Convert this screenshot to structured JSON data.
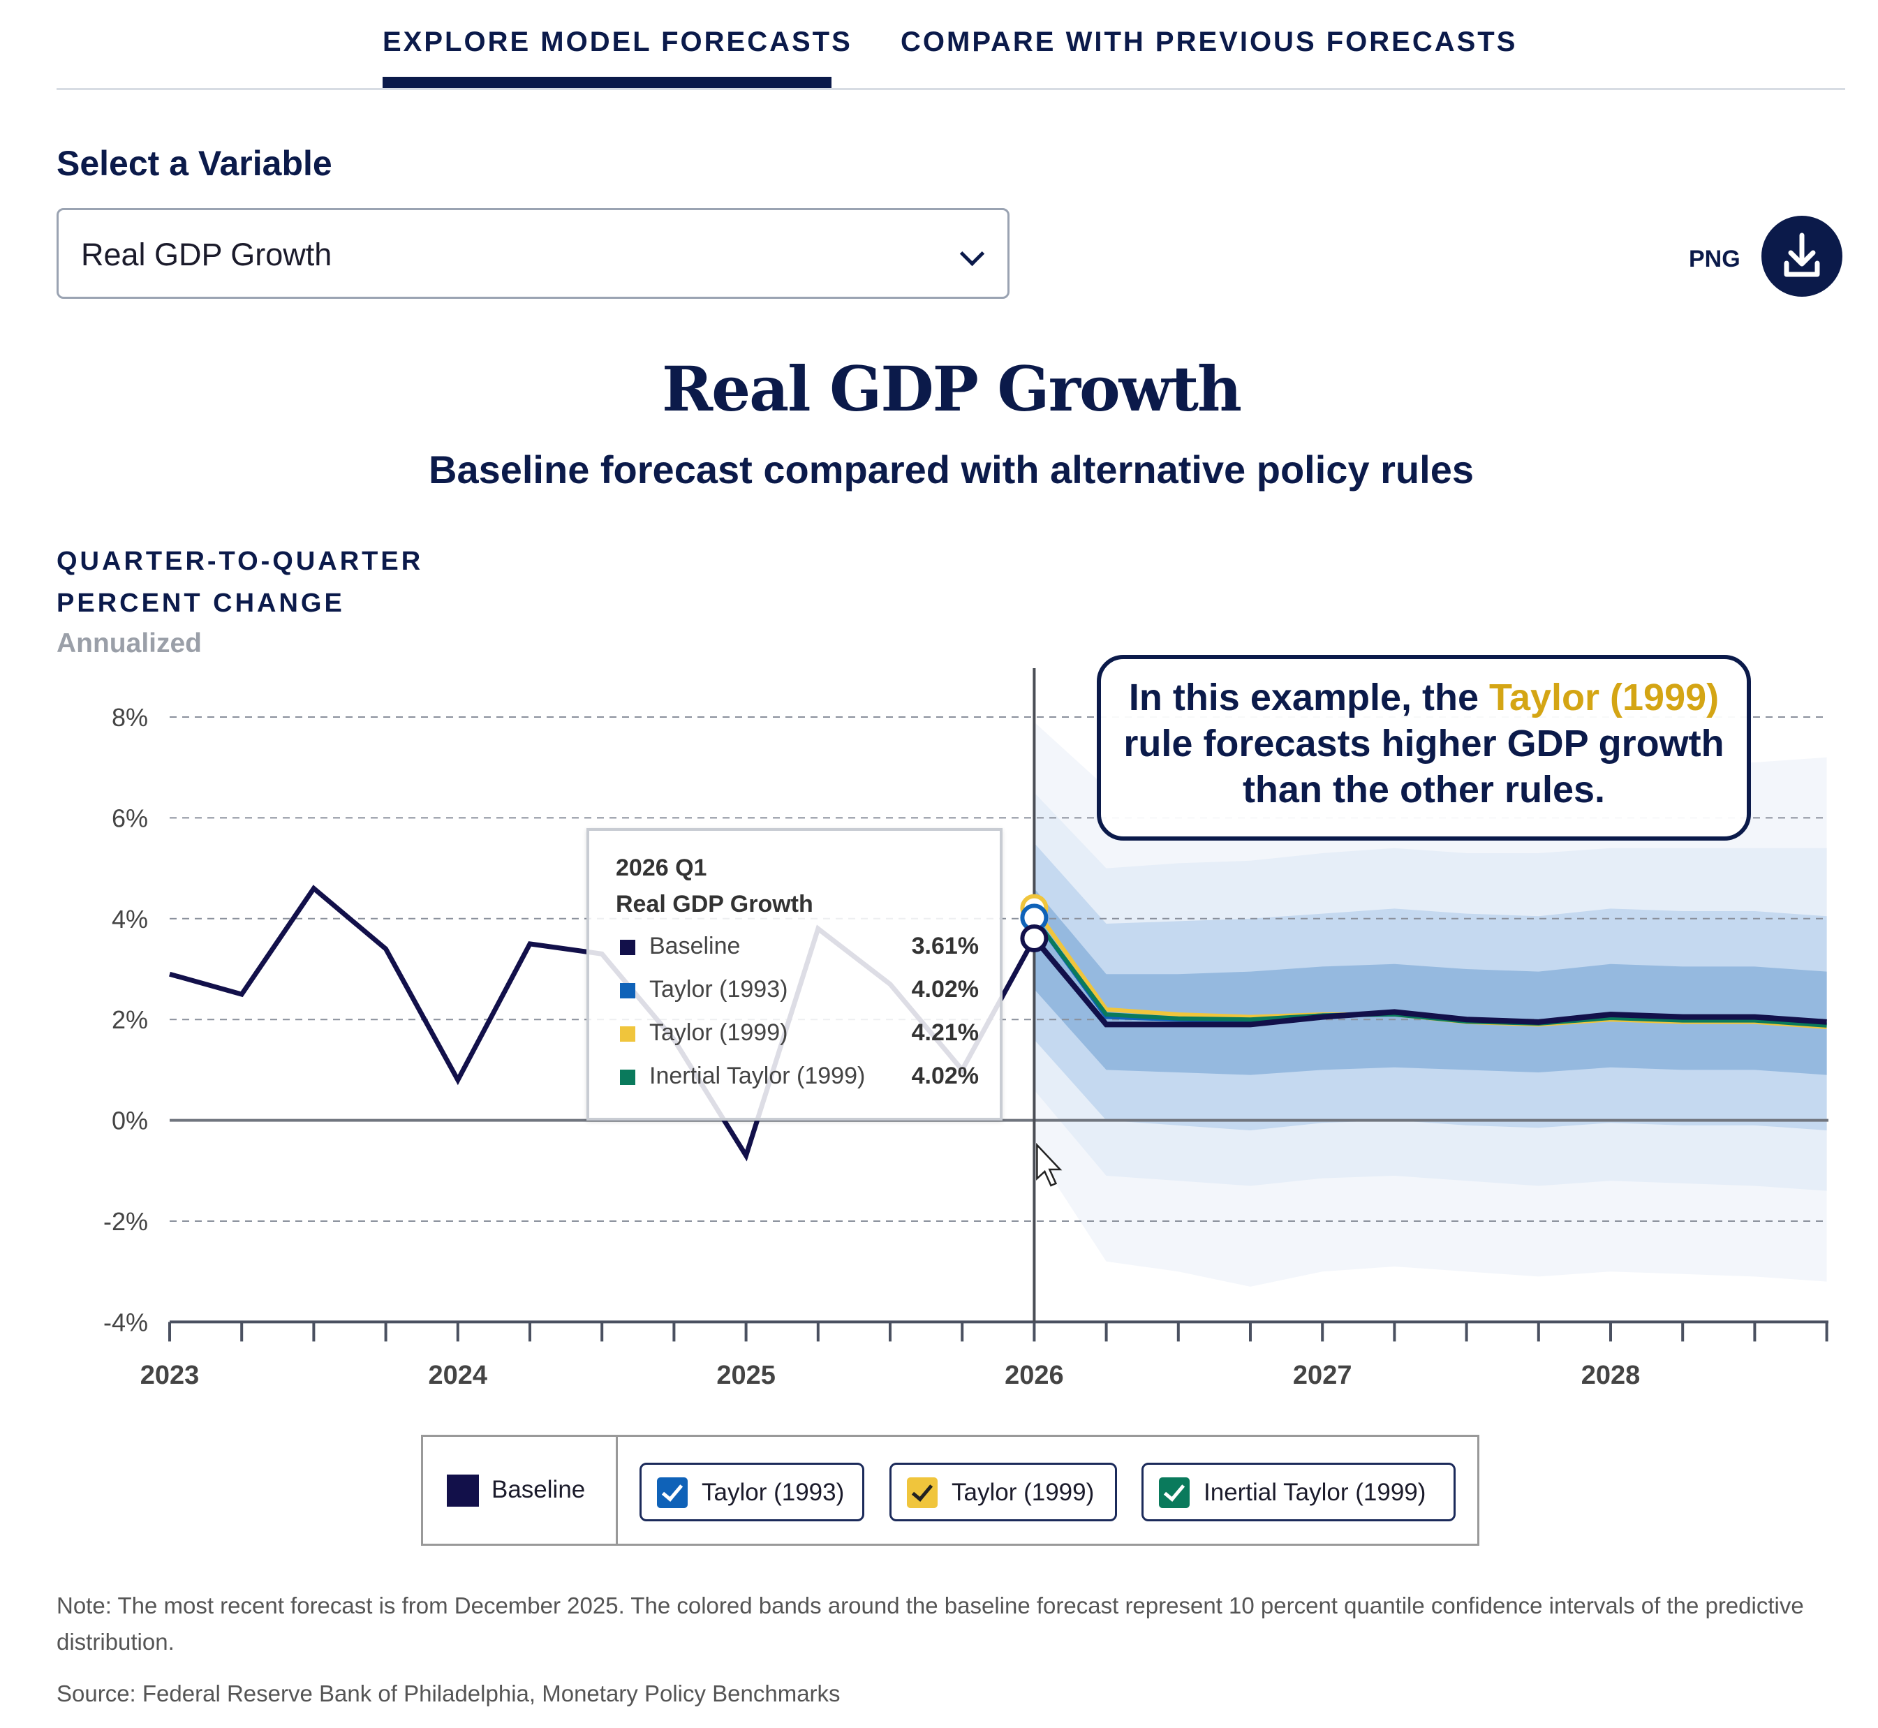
{
  "tabs": [
    {
      "label": "EXPLORE MODEL FORECASTS",
      "active": true
    },
    {
      "label": "COMPARE WITH PREVIOUS FORECASTS",
      "active": false
    }
  ],
  "selector": {
    "label": "Select a Variable",
    "value": "Real GDP Growth"
  },
  "download": {
    "label": "PNG",
    "icon": "download-icon"
  },
  "chart_header": {
    "title": "Real GDP Growth",
    "subtitle": "Baseline forecast compared with alternative policy rules",
    "ylabel_line1": "QUARTER-TO-QUARTER",
    "ylabel_line2": "PERCENT CHANGE",
    "ylabel_note": "Annualized"
  },
  "tooltip": {
    "period": "2026 Q1",
    "variable": "Real GDP Growth",
    "rows": [
      {
        "name": "Baseline",
        "value": "3.61%",
        "color": "#12104a"
      },
      {
        "name": "Taylor (1993)",
        "value": "4.02%",
        "color": "#0f62b8"
      },
      {
        "name": "Taylor (1999)",
        "value": "4.21%",
        "color": "#f0c53c"
      },
      {
        "name": "Inertial Taylor (1999)",
        "value": "4.02%",
        "color": "#0a7a5c"
      }
    ]
  },
  "callout": {
    "before": "In this example, the ",
    "highlight": "Taylor (1999)",
    "after": " rule forecasts higher GDP growth than the other rules."
  },
  "legend": {
    "baseline": "Baseline",
    "items": [
      {
        "label": "Taylor (1993)",
        "checked": true,
        "color": "#0f62b8"
      },
      {
        "label": "Taylor (1999)",
        "checked": true,
        "color": "#f0c53c"
      },
      {
        "label": "Inertial Taylor (1999)",
        "checked": true,
        "color": "#0a7a5c"
      }
    ]
  },
  "notes": {
    "note": "Note: The most recent forecast is from December 2025. The colored bands around the baseline forecast represent 10 percent quantile confidence intervals of the predictive distribution.",
    "source": "Source: Federal Reserve Bank of Philadelphia, Monetary Policy Benchmarks"
  },
  "chart_data": {
    "type": "line",
    "ylim": [
      -4,
      8
    ],
    "yticks": [
      "8%",
      "6%",
      "4%",
      "2%",
      "0%",
      "-2%",
      "-4%"
    ],
    "ytick_values": [
      8,
      6,
      4,
      2,
      0,
      -2,
      -4
    ],
    "xticks": [
      "2023",
      "2024",
      "2025",
      "2026",
      "2027",
      "2028"
    ],
    "grid": true,
    "hover": "2026 Q1",
    "history": {
      "x": [
        "2023Q1",
        "2023Q2",
        "2023Q3",
        "2023Q4",
        "2024Q1",
        "2024Q2",
        "2024Q3",
        "2024Q4",
        "2025Q1",
        "2025Q2",
        "2025Q3",
        "2025Q4",
        "2026Q1"
      ],
      "values": [
        2.9,
        2.5,
        4.6,
        3.4,
        0.8,
        3.5,
        3.3,
        1.6,
        -0.7,
        3.8,
        2.7,
        1.0,
        3.61
      ]
    },
    "forecast_x": [
      "2026Q1",
      "2026Q2",
      "2026Q3",
      "2026Q4",
      "2027Q1",
      "2027Q2",
      "2027Q3",
      "2027Q4",
      "2028Q1",
      "2028Q2",
      "2028Q3",
      "2028Q4"
    ],
    "series": [
      {
        "name": "Baseline",
        "color": "#12104a",
        "values": [
          3.61,
          1.9,
          1.9,
          1.9,
          2.05,
          2.15,
          2.0,
          1.95,
          2.1,
          2.05,
          2.05,
          1.95
        ]
      },
      {
        "name": "Taylor (1993)",
        "color": "#0f62b8",
        "values": [
          4.02,
          2.05,
          2.0,
          1.98,
          2.08,
          2.12,
          1.98,
          1.93,
          2.05,
          2.0,
          2.0,
          1.9
        ]
      },
      {
        "name": "Taylor (1999)",
        "color": "#f0c53c",
        "values": [
          4.21,
          2.2,
          2.1,
          2.05,
          2.1,
          2.1,
          1.95,
          1.9,
          2.0,
          1.95,
          1.95,
          1.85
        ]
      },
      {
        "name": "Inertial Taylor (1999)",
        "color": "#0a7a5c",
        "values": [
          4.02,
          2.1,
          2.02,
          2.0,
          2.08,
          2.1,
          1.96,
          1.92,
          2.03,
          1.98,
          1.98,
          1.88
        ]
      }
    ],
    "bands": [
      {
        "color": "#f3f6fb",
        "upper": [
          7.9,
          6.6,
          6.7,
          6.8,
          6.9,
          7.0,
          7.0,
          7.0,
          7.1,
          7.1,
          7.1,
          7.2
        ],
        "lower": [
          -0.6,
          -2.8,
          -3.0,
          -3.3,
          -3.0,
          -2.9,
          -3.0,
          -3.1,
          -3.0,
          -3.05,
          -3.1,
          -3.2
        ]
      },
      {
        "color": "#e6eef8",
        "upper": [
          6.5,
          5.0,
          5.1,
          5.15,
          5.3,
          5.4,
          5.3,
          5.3,
          5.4,
          5.4,
          5.4,
          5.4
        ],
        "lower": [
          0.6,
          -1.1,
          -1.2,
          -1.3,
          -1.15,
          -1.1,
          -1.2,
          -1.3,
          -1.2,
          -1.25,
          -1.3,
          -1.4
        ]
      },
      {
        "color": "#c5d9f0",
        "upper": [
          5.5,
          3.9,
          3.95,
          4.0,
          4.1,
          4.2,
          4.1,
          4.05,
          4.2,
          4.15,
          4.15,
          4.05
        ],
        "lower": [
          1.6,
          0.0,
          -0.1,
          -0.2,
          -0.05,
          0.0,
          -0.1,
          -0.15,
          -0.05,
          -0.1,
          -0.1,
          -0.2
        ]
      },
      {
        "color": "#95b9df",
        "upper": [
          4.6,
          2.9,
          2.9,
          2.95,
          3.05,
          3.1,
          3.0,
          2.95,
          3.1,
          3.05,
          3.05,
          2.95
        ],
        "lower": [
          2.6,
          1.0,
          0.95,
          0.9,
          1.0,
          1.05,
          1.0,
          0.95,
          1.05,
          1.0,
          1.0,
          0.9
        ]
      }
    ]
  }
}
